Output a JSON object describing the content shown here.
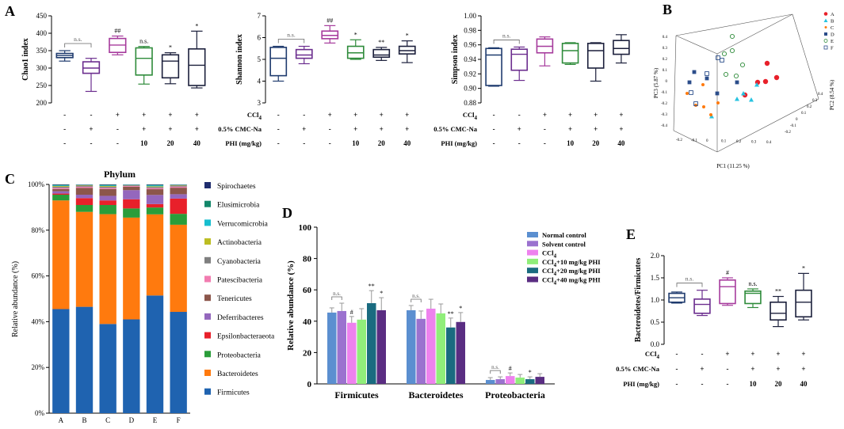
{
  "panel_labels": {
    "a": "A",
    "b": "B",
    "c": "C",
    "d": "D",
    "e": "E"
  },
  "treatment_table": {
    "row_labels": [
      "CCl4",
      "0.5% CMC-Na",
      "PHI (mg/kg)"
    ],
    "rows": [
      [
        "-",
        "-",
        "+",
        "+",
        "+",
        "+"
      ],
      [
        "-",
        "+",
        "-",
        "+",
        "+",
        "+"
      ],
      [
        "-",
        "-",
        "-",
        "10",
        "20",
        "40"
      ]
    ]
  },
  "colors": {
    "normal": "#1f3b6e",
    "solvent": "#6b2d8e",
    "ccl4": "#a63a9c",
    "phi10": "#2e8b3a",
    "phi20": "#1b1f3b",
    "phi40": "#1b1f3b",
    "d_normal": "#5b8fd0",
    "d_solvent": "#9b72cf",
    "d_ccl4": "#ee82ee",
    "d_phi10": "#90ee7a",
    "d_phi20": "#1a6b80",
    "d_phi40": "#5a2d82",
    "firmicutes": "#1f63b0",
    "bacteroidetes": "#ff7a0e",
    "proteobacteria": "#2a9d3a",
    "epsilon": "#e8202a",
    "deferri": "#9467bd",
    "teneri": "#8c564b",
    "patesci": "#f27cb0",
    "cyano": "#7f7f7f",
    "actino": "#bcbd22",
    "verruco": "#17becf",
    "elusimicro": "#13876a",
    "spiro": "#1f2d6e"
  },
  "chart_data": [
    {
      "id": "chao1",
      "type": "box",
      "ylabel": "Chao1 index",
      "ylim": [
        200,
        450
      ],
      "yticks": [
        200,
        250,
        300,
        350,
        400,
        450
      ],
      "groups": [
        {
          "min": 320,
          "q1": 330,
          "median": 336,
          "q3": 342,
          "max": 350,
          "sig": ""
        },
        {
          "min": 233,
          "q1": 285,
          "median": 300,
          "q3": 318,
          "max": 328,
          "sig": ""
        },
        {
          "min": 338,
          "q1": 345,
          "median": 366,
          "q3": 385,
          "max": 392,
          "sig": "##"
        },
        {
          "min": 254,
          "q1": 280,
          "median": 328,
          "q3": 358,
          "max": 362,
          "sig": "n.s."
        },
        {
          "min": 255,
          "q1": 272,
          "median": 320,
          "q3": 338,
          "max": 344,
          "sig": "*"
        },
        {
          "min": 243,
          "q1": 250,
          "median": 308,
          "q3": 355,
          "max": 406,
          "sig": "*"
        }
      ],
      "bracket": "n.s."
    },
    {
      "id": "shannon",
      "type": "box",
      "ylabel": "Shannon index",
      "ylim": [
        3,
        7
      ],
      "yticks": [
        3,
        4,
        5,
        6,
        7
      ],
      "groups": [
        {
          "min": 4.0,
          "q1": 4.25,
          "median": 5.05,
          "q3": 5.55,
          "max": 5.6,
          "sig": ""
        },
        {
          "min": 4.8,
          "q1": 5.05,
          "median": 5.2,
          "q3": 5.45,
          "max": 5.6,
          "sig": ""
        },
        {
          "min": 5.75,
          "q1": 5.95,
          "median": 6.1,
          "q3": 6.3,
          "max": 6.55,
          "sig": "##"
        },
        {
          "min": 5.0,
          "q1": 5.05,
          "median": 5.3,
          "q3": 5.6,
          "max": 5.9,
          "sig": "*"
        },
        {
          "min": 4.95,
          "q1": 5.1,
          "median": 5.2,
          "q3": 5.45,
          "max": 5.55,
          "sig": "**"
        },
        {
          "min": 4.85,
          "q1": 5.25,
          "median": 5.4,
          "q3": 5.6,
          "max": 5.85,
          "sig": "*"
        }
      ],
      "bracket": "n.s."
    },
    {
      "id": "simpson",
      "type": "box",
      "ylabel": "Simpson index",
      "ylim": [
        0.88,
        1.0
      ],
      "yticks": [
        0.88,
        0.9,
        0.92,
        0.94,
        0.96,
        0.98,
        1.0
      ],
      "ytick_labels": [
        "0.88",
        "0.90",
        "0.92",
        "0.94",
        "0.96",
        "0.98",
        "1.00"
      ],
      "groups": [
        {
          "min": 0.903,
          "q1": 0.904,
          "median": 0.946,
          "q3": 0.955,
          "max": 0.956,
          "sig": ""
        },
        {
          "min": 0.911,
          "q1": 0.925,
          "median": 0.947,
          "q3": 0.954,
          "max": 0.957,
          "sig": ""
        },
        {
          "min": 0.931,
          "q1": 0.949,
          "median": 0.958,
          "q3": 0.968,
          "max": 0.971,
          "sig": ""
        },
        {
          "min": 0.933,
          "q1": 0.935,
          "median": 0.952,
          "q3": 0.962,
          "max": 0.963,
          "sig": ""
        },
        {
          "min": 0.91,
          "q1": 0.928,
          "median": 0.952,
          "q3": 0.962,
          "max": 0.963,
          "sig": ""
        },
        {
          "min": 0.935,
          "q1": 0.947,
          "median": 0.955,
          "q3": 0.966,
          "max": 0.974,
          "sig": ""
        }
      ],
      "bracket": "n.s."
    },
    {
      "id": "pca3d",
      "type": "scatter",
      "xlabel": "PC1 (11.25 %)",
      "ylabel": "PC2 (8.54 %)",
      "zlabel": "PC3 (5.87 %)",
      "legend": [
        "A",
        "B",
        "C",
        "D",
        "E",
        "F"
      ],
      "axis_ticks": {
        "pc1": [
          "-0.2",
          "-0.1",
          "0",
          "0.1",
          "0.2",
          "0.3",
          "0.4"
        ],
        "pc2": [
          "-0.2",
          "-0.1",
          "0",
          "0.1",
          "0.2",
          "0.3",
          "0.4"
        ],
        "pc3": [
          "-0.4",
          "-0.3",
          "-0.2",
          "-0.1",
          "0",
          "0.1",
          "0.2",
          "0.3",
          "0.4"
        ]
      }
    },
    {
      "id": "phylum",
      "type": "bar",
      "stacked": true,
      "title": "Phylum",
      "ylabel": "Relative abundance (%)",
      "categories": [
        "A",
        "B",
        "C",
        "D",
        "E",
        "F"
      ],
      "yticks": [
        "0%",
        "20%",
        "40%",
        "60%",
        "80%",
        "100%"
      ],
      "series": [
        {
          "name": "Firmicutes",
          "values": [
            45.5,
            46.5,
            39,
            41,
            51.5,
            46.5
          ]
        },
        {
          "name": "Bacteroidetes",
          "values": [
            47.5,
            41.5,
            48,
            44.5,
            35.5,
            40
          ]
        },
        {
          "name": "Proteobacteria",
          "values": [
            2.5,
            3,
            4,
            4,
            3,
            5
          ]
        },
        {
          "name": "Epsilonbacteraeota",
          "values": [
            0.5,
            3,
            2,
            4,
            1.5,
            7
          ]
        },
        {
          "name": "Deferribacteres",
          "values": [
            1,
            1.5,
            2,
            4,
            4,
            2
          ]
        },
        {
          "name": "Tenericutes",
          "values": [
            1,
            3,
            3,
            1.5,
            2.5,
            3
          ]
        },
        {
          "name": "Patescibacteria",
          "values": [
            0.5,
            0.5,
            0.5,
            0.3,
            0.5,
            0.5
          ]
        },
        {
          "name": "Cyanobacteria",
          "values": [
            0.5,
            0.5,
            0.5,
            0.3,
            0.5,
            0.5
          ]
        },
        {
          "name": "Actinobacteria",
          "values": [
            0.3,
            0.2,
            0.3,
            0.1,
            0.3,
            0.2
          ]
        },
        {
          "name": "Verrucomicrobia",
          "values": [
            0.3,
            0.1,
            0.3,
            0.1,
            0.4,
            0.1
          ]
        },
        {
          "name": "Elusimicrobia",
          "values": [
            0.2,
            0.1,
            0.2,
            0.1,
            0.2,
            0.1
          ]
        },
        {
          "name": "Spirochaetes",
          "values": [
            0.2,
            0.1,
            0.2,
            0.1,
            0.2,
            0.1
          ]
        }
      ]
    },
    {
      "id": "phyla_groups",
      "type": "bar",
      "ylabel": "Relative abundance (%)",
      "ylim": [
        0,
        100
      ],
      "yticks": [
        0,
        20,
        40,
        60,
        80,
        100
      ],
      "categories": [
        "Firmicutes",
        "Bacteroidetes",
        "Proteobacteria"
      ],
      "series": [
        {
          "name": "Normal control",
          "values": [
            45.5,
            47,
            2.5
          ],
          "errors": [
            3,
            3,
            1.5
          ],
          "sig": [
            "",
            "",
            ""
          ]
        },
        {
          "name": "Solvent control",
          "values": [
            46.5,
            41.5,
            3
          ],
          "errors": [
            5,
            5,
            1.5
          ],
          "sig": [
            "",
            "",
            ""
          ]
        },
        {
          "name": "CCl4",
          "values": [
            39,
            48,
            5
          ],
          "errors": [
            4,
            6,
            2
          ],
          "sig": [
            "#",
            "",
            "#"
          ]
        },
        {
          "name": "CCl4+10 mg/kg PHI",
          "values": [
            41,
            45,
            4
          ],
          "errors": [
            7,
            6,
            2
          ],
          "sig": [
            "",
            "",
            ""
          ]
        },
        {
          "name": "CCl4+20 mg/kg PHI",
          "values": [
            51.5,
            36,
            3
          ],
          "errors": [
            8,
            6,
            1.5
          ],
          "sig": [
            "**",
            "**",
            "*"
          ]
        },
        {
          "name": "CCl4+40 mg/kg PHI",
          "values": [
            47,
            39.5,
            4.5
          ],
          "errors": [
            8,
            6,
            2
          ],
          "sig": [
            "*",
            "*",
            ""
          ]
        }
      ],
      "brackets": [
        "n.s.",
        "n.s.",
        "n.s."
      ]
    },
    {
      "id": "ratio",
      "type": "box",
      "ylabel": "Bacteroidetes/Firmicutes",
      "ylim": [
        0,
        2.0
      ],
      "yticks": [
        0,
        0.5,
        1.0,
        1.5,
        2.0
      ],
      "ytick_labels": [
        "0.0",
        "0.5",
        "1.0",
        "1.5",
        "2.0"
      ],
      "groups": [
        {
          "min": 0.93,
          "q1": 0.95,
          "median": 1.05,
          "q3": 1.15,
          "max": 1.18,
          "sig": ""
        },
        {
          "min": 0.65,
          "q1": 0.7,
          "median": 0.9,
          "q3": 1.02,
          "max": 1.22,
          "sig": ""
        },
        {
          "min": 0.88,
          "q1": 0.92,
          "median": 1.3,
          "q3": 1.45,
          "max": 1.5,
          "sig": "#"
        },
        {
          "min": 0.83,
          "q1": 0.92,
          "median": 1.15,
          "q3": 1.2,
          "max": 1.25,
          "sig": "n.s."
        },
        {
          "min": 0.4,
          "q1": 0.55,
          "median": 0.7,
          "q3": 0.95,
          "max": 1.08,
          "sig": "**"
        },
        {
          "min": 0.55,
          "q1": 0.62,
          "median": 0.95,
          "q3": 1.22,
          "max": 1.6,
          "sig": "*"
        }
      ],
      "bracket": "n.s."
    }
  ]
}
